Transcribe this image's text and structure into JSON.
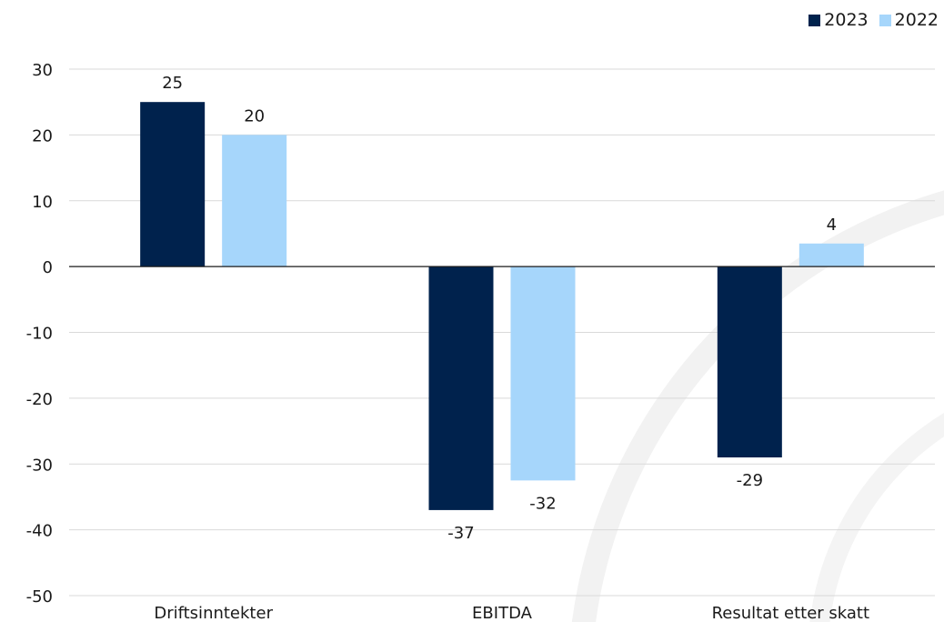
{
  "chart_data": {
    "type": "bar",
    "categories": [
      "Driftsinntekter",
      "EBITDA",
      "Resultat etter skatt"
    ],
    "series": [
      {
        "name": "2023",
        "values": [
          25,
          -37,
          -29
        ],
        "labels": [
          "25",
          "-37",
          "-29"
        ],
        "color": "#00224d"
      },
      {
        "name": "2022",
        "values": [
          20,
          -32.5,
          3.5
        ],
        "labels": [
          "20",
          "-32",
          "4"
        ],
        "color": "#a6d6fb"
      }
    ],
    "title": "",
    "xlabel": "",
    "ylabel": "",
    "ylim": [
      -50,
      30
    ],
    "yticks": [
      30,
      20,
      10,
      0,
      -10,
      -20,
      -30,
      -40,
      -50
    ],
    "ytick_labels": [
      "30",
      "20",
      "10",
      "0",
      "-10",
      "-20",
      "-30",
      "-40",
      "-50"
    ],
    "grid": true,
    "legend_position": "top-right"
  }
}
